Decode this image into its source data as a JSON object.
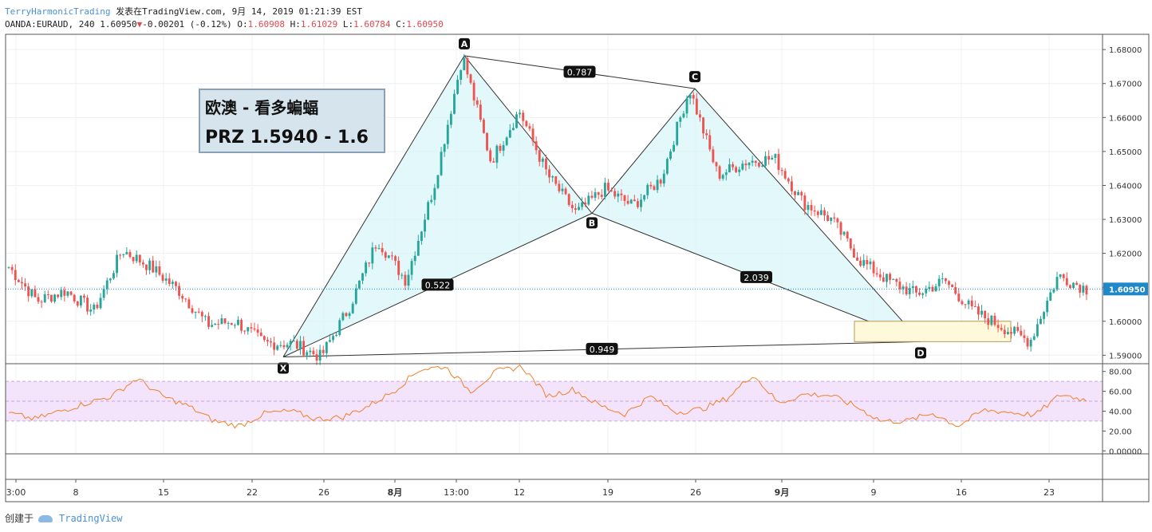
{
  "header": {
    "author": "TerryHarmonicTrading",
    "published_text": "发表在TradingView.com, 9月 14, 2019 01:21:39 EST",
    "symbol_text": "OANDA:EURAUD, 240 1.60950",
    "change_text": "-0.00201 (-0.12%)",
    "ohlc": [
      {
        "label": "O:",
        "value": "1.60908"
      },
      {
        "label": "H:",
        "value": "1.61029"
      },
      {
        "label": "L:",
        "value": "1.60784"
      },
      {
        "label": "C:",
        "value": "1.60950"
      }
    ]
  },
  "infobox": {
    "line1": "欧澳 - 看多蝙蝠",
    "line2": "PRZ 1.5940 - 1.6"
  },
  "footer": {
    "text": "创建于",
    "brand": "TradingView"
  },
  "colors": {
    "up": "#26a69a",
    "down": "#ef5350",
    "pattern_fill": "#d9f5f8",
    "pattern_line": "#333333",
    "prz_fill": "#fff9dc",
    "prz_border": "#b59a55",
    "rsi_line": "#f0802a",
    "rsi_band": "#f3e3fb",
    "last_price_label": "#1e88c8"
  },
  "chart_data": [
    {
      "type": "candlestick",
      "symbol": "OANDA:EURAUD",
      "timeframe": "240",
      "ylim": [
        1.5875,
        1.6845
      ],
      "y_ticks": [
        "1.68000",
        "1.67000",
        "1.66000",
        "1.65000",
        "1.64000",
        "1.63000",
        "1.62000",
        "1.61000",
        "1.60000",
        "1.59000"
      ],
      "x_ticks": [
        "3:00",
        "8",
        "15",
        "22",
        "26",
        "8月",
        "13:00",
        "12",
        "19",
        "26",
        "9月",
        "9",
        "16",
        "23"
      ],
      "last_price": "1.60950",
      "pattern": {
        "name": "Bullish Bat",
        "points": [
          {
            "label": "X",
            "value": 1.5895
          },
          {
            "label": "A",
            "value": 1.6782
          },
          {
            "label": "B",
            "value": 1.6318
          },
          {
            "label": "C",
            "value": 1.6685
          },
          {
            "label": "D",
            "value": 1.594
          }
        ],
        "ratios": [
          "0.787",
          "0.522",
          "2.039",
          "0.949"
        ]
      },
      "prz": [
        1.594,
        1.6
      ],
      "anchors": [
        1.616,
        1.606,
        1.609,
        1.603,
        1.621,
        1.616,
        1.609,
        1.599,
        1.6,
        1.5935,
        1.5935,
        1.5895,
        1.604,
        1.624,
        1.612,
        1.64,
        1.6782,
        1.647,
        1.662,
        1.643,
        1.6318,
        1.639,
        1.634,
        1.642,
        1.6685,
        1.643,
        1.647,
        1.648,
        1.635,
        1.63,
        1.618,
        1.612,
        1.608,
        1.612,
        1.603,
        1.5985,
        1.594,
        1.6135,
        1.6095
      ]
    },
    {
      "type": "line",
      "indicator": "RSI",
      "ylim": [
        -3,
        87
      ],
      "y_ticks": [
        "80.00",
        "60.00",
        "40.00",
        "20.00",
        "0.00000"
      ],
      "band": [
        30,
        70
      ],
      "anchors": [
        38,
        32,
        40,
        48,
        55,
        73,
        55,
        45,
        30,
        25,
        38,
        40,
        32,
        34,
        45,
        60,
        82,
        85,
        60,
        80,
        85,
        55,
        62,
        46,
        37,
        55,
        39,
        42,
        53,
        77,
        48,
        57,
        56,
        45,
        30,
        30,
        38,
        25,
        41,
        39,
        36,
        57,
        51
      ]
    }
  ]
}
